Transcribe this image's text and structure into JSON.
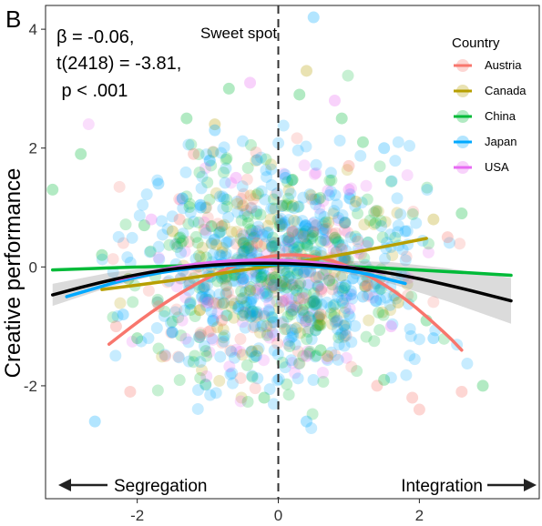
{
  "chart_data": {
    "type": "scatter",
    "panel_label": "B",
    "xlabel": "",
    "ylabel": "Creative performance",
    "xlim": [
      -3.3,
      3.7
    ],
    "ylim": [
      -3.9,
      4.4
    ],
    "x_ticks": [
      -2,
      0,
      2
    ],
    "y_ticks": [
      -2,
      0,
      2,
      4
    ],
    "grid": false,
    "stats": [
      "β = -0.06,",
      "t(2418) = -3.81,",
      " p < .001"
    ],
    "vline": {
      "x": 0,
      "label": "Sweet spot"
    },
    "arrows": {
      "left": "Segregation",
      "right": "Integration"
    },
    "legend": {
      "title": "Country",
      "position": "top-right"
    },
    "series": [
      {
        "name": "Austria",
        "color": "#F8766D",
        "points_x": [
          -2.1,
          -1.6,
          -1.2,
          -0.8,
          -0.3,
          0.2,
          0.6,
          1.0,
          1.4,
          2.0,
          2.4,
          2.6,
          -1.4,
          1.9,
          -2.3,
          0.9
        ],
        "points_y": [
          -2.1,
          -1.5,
          1.9,
          -0.9,
          0.4,
          0.6,
          -0.8,
          1.7,
          -2.0,
          -2.4,
          0.5,
          -2.1,
          0.8,
          -2.2,
          -1.0,
          0.3
        ],
        "fit_x": [
          -2.4,
          -1.8,
          -1.2,
          -0.6,
          0,
          0.6,
          1.2,
          1.8,
          2.4,
          2.6
        ],
        "fit_y": [
          -1.3,
          -0.75,
          -0.3,
          0.05,
          0.22,
          0.18,
          -0.08,
          -0.52,
          -1.15,
          -1.4
        ]
      },
      {
        "name": "Canada",
        "color": "#B79F00",
        "points_x": [
          -1.5,
          -0.4,
          0.4,
          1.1,
          1.7,
          2.2,
          -0.9,
          0.7
        ],
        "points_y": [
          0.6,
          -0.4,
          3.3,
          1.1,
          -0.6,
          0.8,
          2.4,
          -1.5
        ],
        "fit_x": [
          -2.5,
          -1.5,
          -0.5,
          0.5,
          1.5,
          2.1
        ],
        "fit_y": [
          -0.38,
          -0.23,
          -0.05,
          0.12,
          0.34,
          0.48
        ]
      },
      {
        "name": "China",
        "color": "#00BA38",
        "points_x": [
          -3.2,
          -2.8,
          -2.5,
          -2.0,
          -1.3,
          -0.7,
          0.3,
          0.9,
          1.5,
          2.1,
          2.6,
          2.9,
          -1.9,
          1.2,
          -0.2,
          0.6
        ],
        "points_y": [
          1.3,
          1.9,
          0.2,
          -1.2,
          2.5,
          3.0,
          2.9,
          2.5,
          -1.9,
          -0.9,
          0.9,
          -2.0,
          0.7,
          2.1,
          -2.2,
          -1.4
        ],
        "fit_x": [
          -3.2,
          -2,
          -1,
          0,
          1,
          2,
          3.3
        ],
        "fit_y": [
          -0.05,
          0.0,
          0.03,
          0.04,
          0.01,
          -0.05,
          -0.14
        ]
      },
      {
        "name": "Japan",
        "color": "#00A9FF",
        "points_x": [
          -2.6,
          -2.2,
          -1.7,
          -1.1,
          -0.5,
          0.1,
          0.5,
          1.2,
          1.8,
          2.2,
          0.4,
          -0.9,
          1.5,
          -1.5,
          0.9,
          -0.3
        ],
        "points_y": [
          -2.6,
          -0.8,
          1.4,
          1.0,
          -0.2,
          1.5,
          4.2,
          -0.5,
          0.6,
          -1.2,
          -2.6,
          2.3,
          2.0,
          -1.1,
          0.1,
          1.8
        ],
        "fit_x": [
          -3.0,
          -2,
          -1,
          0,
          1,
          1.8
        ],
        "fit_y": [
          -0.5,
          -0.15,
          0.02,
          0.06,
          -0.04,
          -0.28
        ]
      },
      {
        "name": "USA",
        "color": "#E76BF3",
        "points_x": [
          -1.8,
          -1.0,
          -0.4,
          0.4,
          1.0,
          1.6,
          -0.6,
          0.8
        ],
        "points_y": [
          0.8,
          -0.6,
          3.1,
          -1.5,
          1.3,
          -1.0,
          1.5,
          2.8
        ],
        "fit_x": [
          -2.3,
          -1.5,
          -0.7,
          0,
          0.7,
          1.5
        ],
        "fit_y": [
          -0.22,
          0.0,
          0.11,
          0.12,
          0.06,
          -0.1
        ]
      },
      {
        "name": "",
        "color": "#000000",
        "fit_x": [
          -3.2,
          -2.4,
          -1.6,
          -0.8,
          0,
          0.8,
          1.6,
          2.4,
          3.3
        ],
        "fit_y": [
          -0.47,
          -0.22,
          -0.04,
          0.05,
          0.07,
          0.02,
          -0.1,
          -0.3,
          -0.57
        ]
      }
    ]
  }
}
